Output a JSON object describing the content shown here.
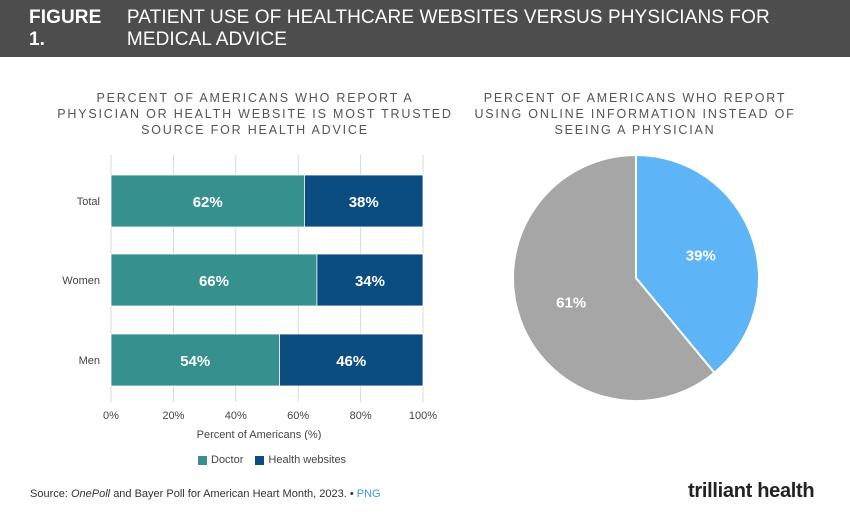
{
  "header": {
    "figure_label": "FIGURE 1.",
    "title": "PATIENT USE OF HEALTHCARE WEBSITES VERSUS PHYSICIANS FOR MEDICAL ADVICE"
  },
  "chart_data": [
    {
      "type": "bar",
      "orientation": "horizontal",
      "stacked": true,
      "title": "PERCENT OF AMERICANS WHO REPORT A\nPHYSICIAN OR HEALTH WEBSITE IS MOST TRUSTED\nSOURCE FOR HEALTH ADVICE",
      "categories": [
        "Total",
        "Women",
        "Men"
      ],
      "series": [
        {
          "name": "Doctor",
          "values": [
            62,
            66,
            54
          ],
          "labels": [
            "62%",
            "66%",
            "54%"
          ],
          "color": "#35908e"
        },
        {
          "name": "Health websites",
          "values": [
            38,
            34,
            46
          ],
          "labels": [
            "38%",
            "34%",
            "46%"
          ],
          "color": "#0b4d80"
        }
      ],
      "xlim": [
        0,
        100
      ],
      "xticks": [
        "0%",
        "20%",
        "40%",
        "60%",
        "80%",
        "100%"
      ],
      "xlabel": "Percent of Americans (%)",
      "grid": true,
      "legend": "bottom"
    },
    {
      "type": "pie",
      "title": "PERCENT OF AMERICANS WHO REPORT\nUSING ONLINE INFORMATION INSTEAD OF\nSEEING A PHYSICIAN",
      "slices": [
        {
          "value": 39,
          "label": "39%",
          "color": "#5db5f8"
        },
        {
          "value": 61,
          "label": "61%",
          "color": "#a6a6a6"
        }
      ],
      "start": "12 o'clock, clockwise"
    }
  ],
  "footer": {
    "source_prefix": "Source:",
    "source_italic": "OnePoll",
    "source_rest": "and Bayer Poll for American Heart Month, 2023.",
    "separator": "•",
    "link_text": "PNG",
    "brand_name": "trilliant health"
  }
}
